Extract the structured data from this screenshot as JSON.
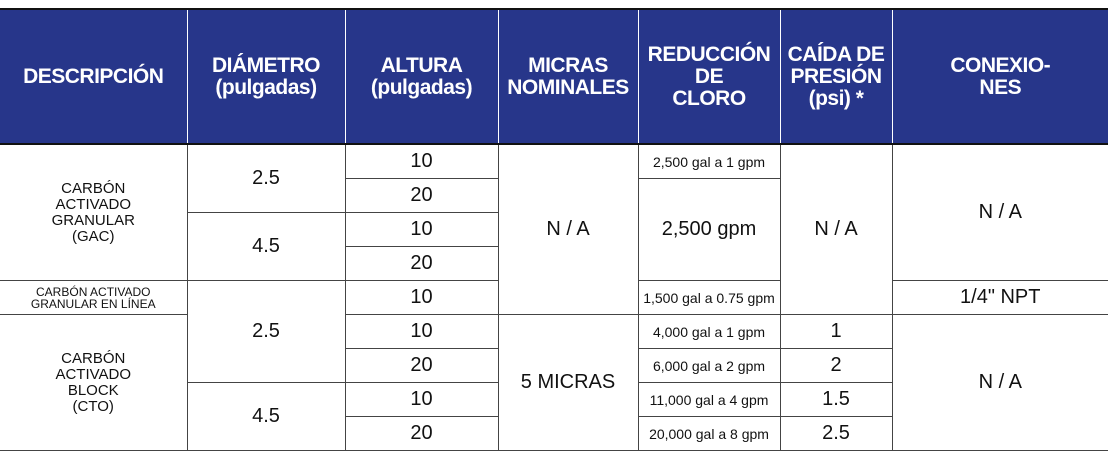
{
  "table": {
    "columns": [
      "DESCRIPCIÓN",
      "DIÁMETRO\n(pulgadas)",
      "ALTURA\n(pulgadas)",
      "MICRAS\nNOMINALES",
      "REDUCCIÓN\nDE\nCLORO",
      "CAÍDA DE\nPRESIÓN\n(psi) *",
      "CONEXIO-\nNES"
    ],
    "rows": [
      [
        "CARBÓN\nACTIVADO\nGRANULAR\n(GAC)",
        "2.5",
        "10",
        "N / A",
        "2,500 gal a 1 gpm",
        "N / A",
        "N / A"
      ],
      [
        "20",
        "2,500 gpm"
      ],
      [
        "4.5",
        "10"
      ],
      [
        "20"
      ],
      [
        "CARBÓN ACTIVADO\nGRANULAR EN LÍNEA",
        "2.5",
        "10",
        "1,500 gal a 0.75 gpm",
        "1/4\" NPT"
      ],
      [
        "CARBÓN\nACTIVADO\nBLOCK\n(CTO)",
        "10",
        "5 MICRAS",
        "4,000 gal a 1 gpm",
        "1",
        "N / A"
      ],
      [
        "20",
        "6,000 gal a 2 gpm",
        "2"
      ],
      [
        "4.5",
        "10",
        "11,000 gal a 4 gpm",
        "1.5"
      ],
      [
        "20",
        "20,000 gal a 8 gpm",
        "2.5"
      ]
    ]
  }
}
